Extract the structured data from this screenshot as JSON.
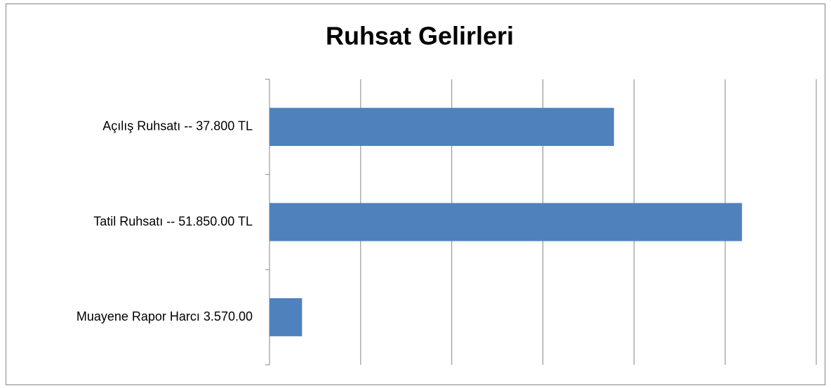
{
  "chart_data": {
    "type": "hbar",
    "title": "Ruhsat Gelirleri",
    "categories": [
      "Açılış Ruhsatı -- 37.800 TL",
      "Tatil Ruhsatı -- 51.850.00 TL",
      "Muayene Rapor Harcı 3.570.00"
    ],
    "values": [
      37800,
      51850,
      3570
    ],
    "color": "#4f81bd",
    "xlim": [
      0,
      60000
    ],
    "xticks": [
      0,
      10000,
      20000,
      30000,
      40000,
      50000,
      60000
    ],
    "grid": true
  }
}
